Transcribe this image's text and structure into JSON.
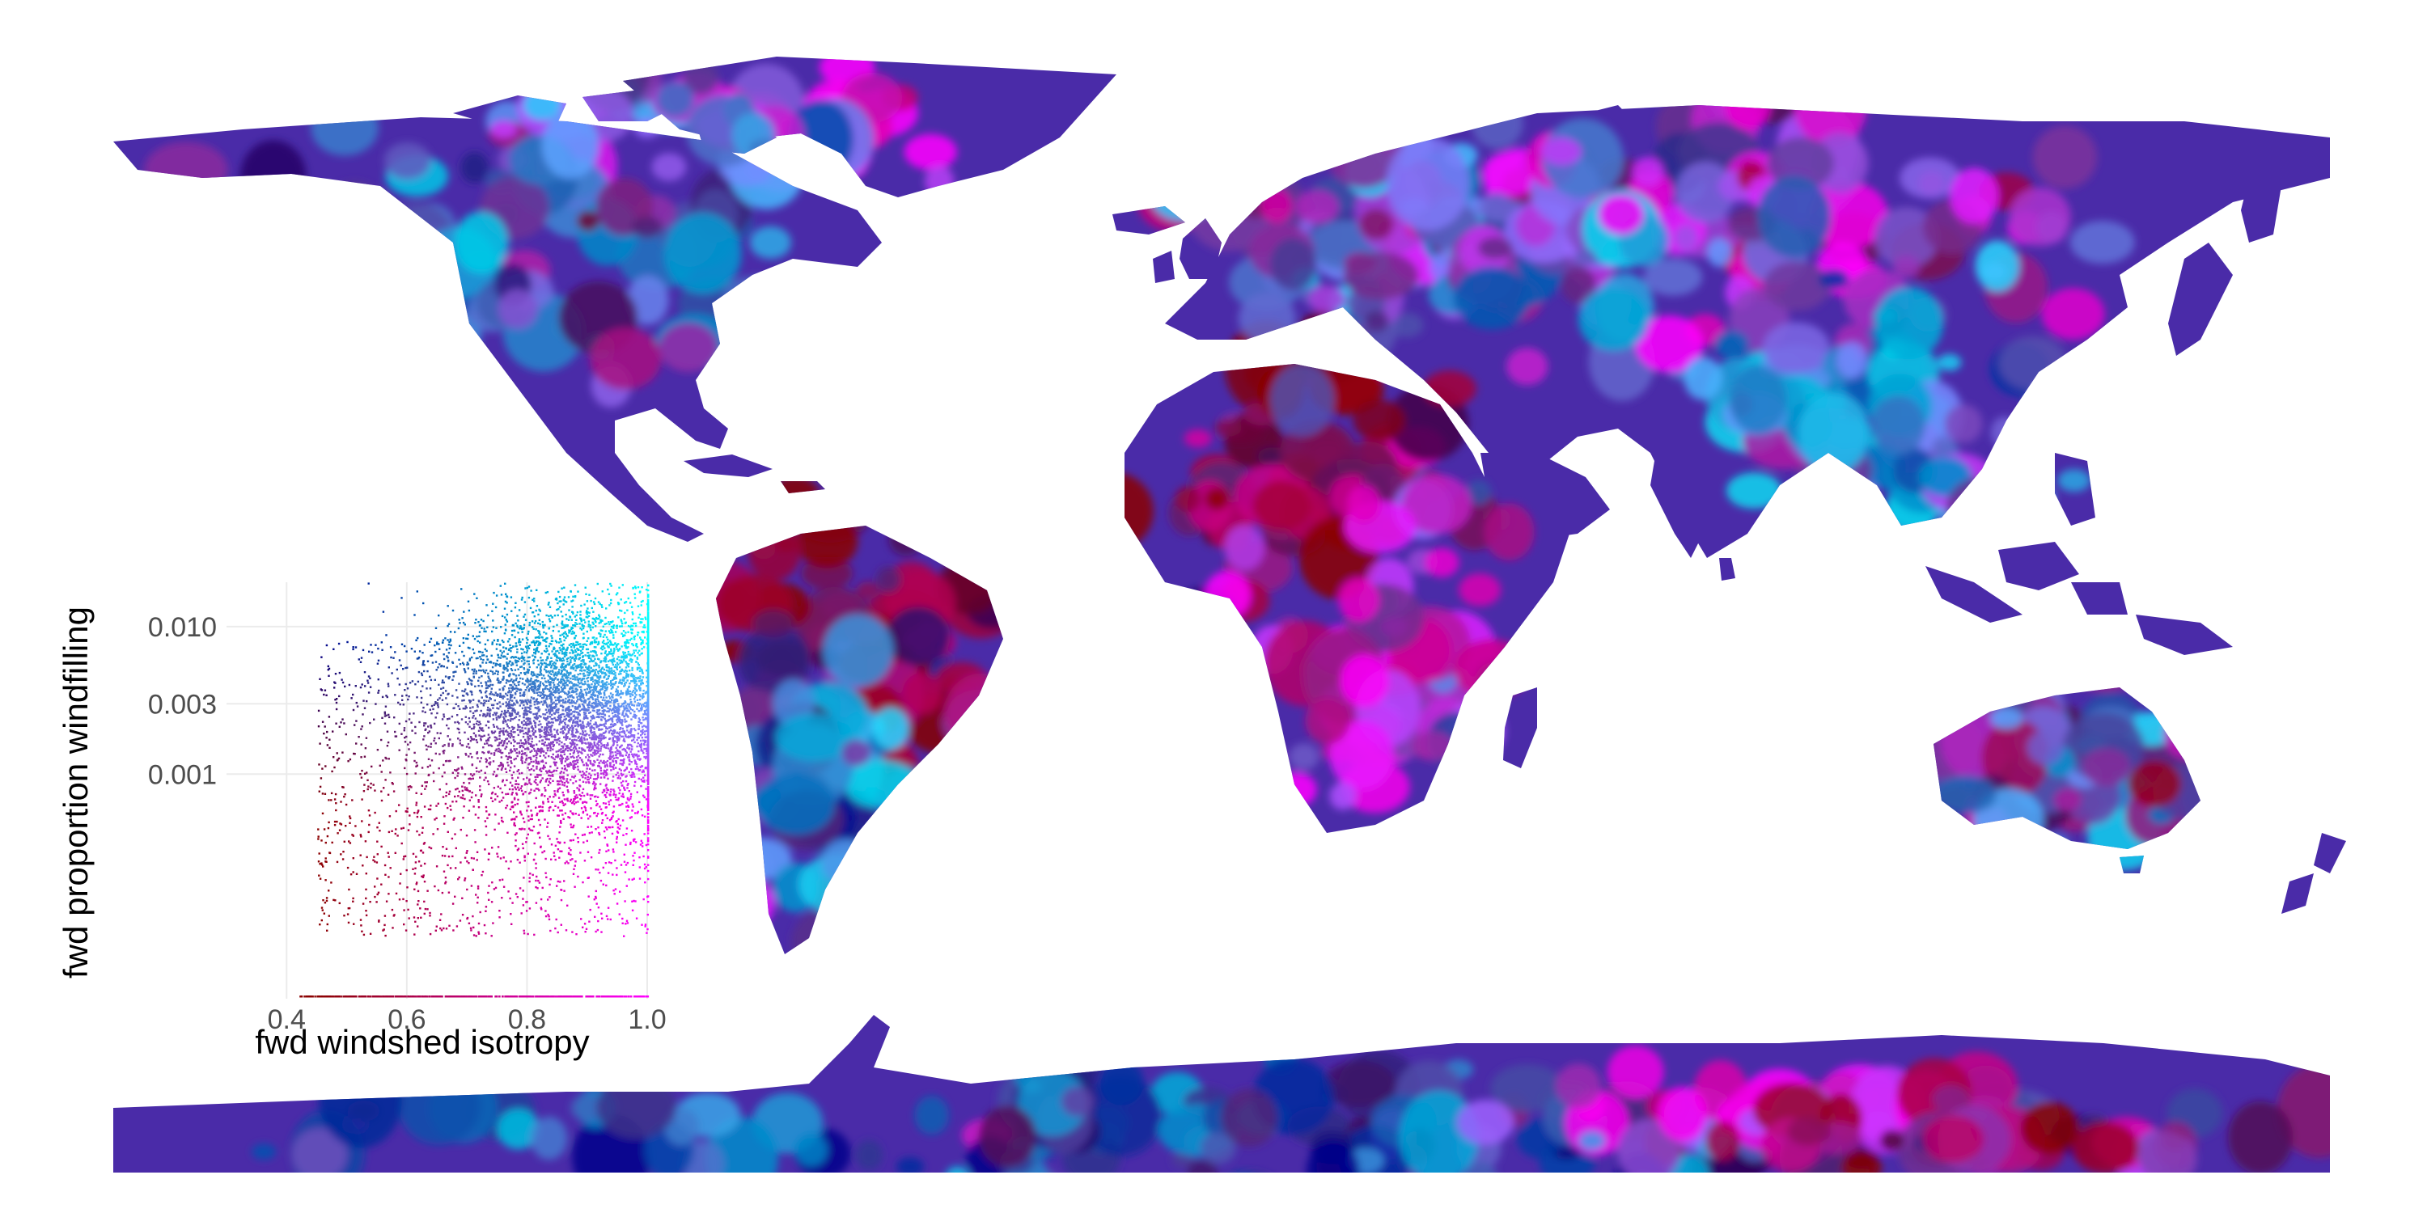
{
  "map": {
    "projection": "equirectangular",
    "extent": {
      "lon": [
        -180,
        180
      ],
      "lat": [
        -90,
        84
      ]
    },
    "background": "#ffffff",
    "color_legend": {
      "type": "bivariate",
      "corner_colors": {
        "low_isotropy_low_windfilling": "#8b0000",
        "high_isotropy_low_windfilling": "#ff00ff",
        "low_isotropy_high_windfilling": "#00008b",
        "high_isotropy_high_windfilling": "#00ffff"
      }
    }
  },
  "inset": {
    "type": "scatter",
    "x_axis": {
      "label": "fwd windshed isotropy",
      "ticks": [
        "0.4",
        "0.6",
        "0.8",
        "1.0"
      ],
      "tick_values": [
        0.4,
        0.6,
        0.8,
        1.0
      ],
      "range": [
        0.3,
        1.0
      ]
    },
    "y_axis": {
      "label": "fwd proportion windfilling",
      "scale": "log10",
      "ticks": [
        "0.001",
        "0.003",
        "0.010"
      ],
      "tick_values": [
        0.001,
        0.003,
        0.01
      ],
      "range": [
        3e-05,
        0.02
      ]
    },
    "grid": true
  },
  "chart_data": {
    "type": "scatter",
    "title": "",
    "xlabel": "fwd windshed isotropy",
    "ylabel": "fwd proportion windfilling",
    "xlim": [
      0.3,
      1.0
    ],
    "ylim": [
      3e-05,
      0.02
    ],
    "yscale": "log",
    "grid": true,
    "point_cloud": {
      "x_range_dense": [
        0.45,
        1.0
      ],
      "y_range_dense": [
        0.0003,
        0.008
      ],
      "x_mode": 0.85,
      "y_mode": 0.003
    }
  }
}
